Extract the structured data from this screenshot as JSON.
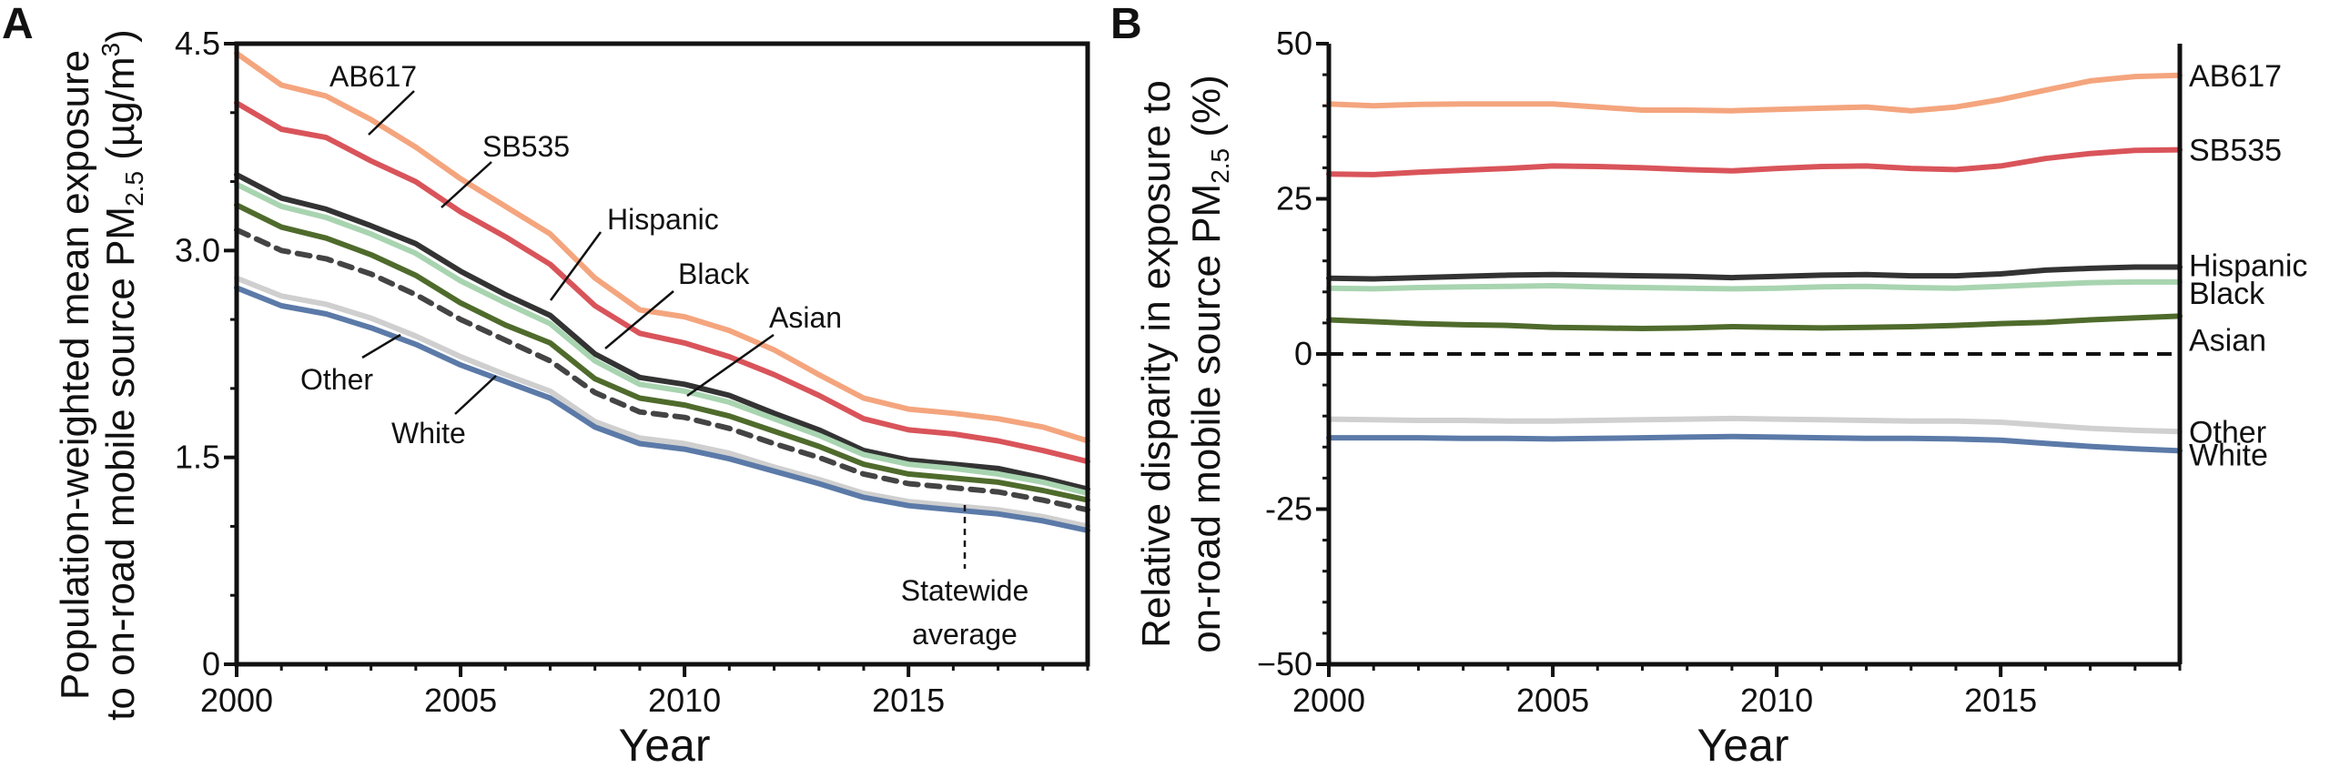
{
  "chart_data": [
    {
      "panel": "A",
      "type": "line",
      "ylabel_line1": "Population-weighted mean exposure",
      "ylabel_line2_prefix": "to on-road mobile source PM",
      "ylabel_sub": "2.5",
      "ylabel_unit_prefix": " (µg/m",
      "ylabel_unit_sup": "3",
      "ylabel_unit_suffix": ")",
      "xlabel": "Year",
      "xlim": [
        2000,
        2019
      ],
      "ylim": [
        0,
        4.5
      ],
      "xticks": [
        2000,
        2005,
        2010,
        2015
      ],
      "yticks": [
        {
          "value": 0,
          "label": "0"
        },
        {
          "value": 1.5,
          "label": "1.5"
        },
        {
          "value": 3.0,
          "label": "3.0"
        },
        {
          "value": 4.5,
          "label": "4.5"
        }
      ],
      "x": [
        2000,
        2001,
        2002,
        2003,
        2004,
        2005,
        2006,
        2007,
        2008,
        2009,
        2010,
        2011,
        2012,
        2013,
        2014,
        2015,
        2016,
        2017,
        2018,
        2019
      ],
      "series": [
        {
          "name": "AB617",
          "color": "#f4a57e",
          "values": [
            4.43,
            4.2,
            4.12,
            3.95,
            3.75,
            3.52,
            3.32,
            3.12,
            2.8,
            2.57,
            2.52,
            2.42,
            2.28,
            2.1,
            1.93,
            1.85,
            1.82,
            1.78,
            1.72,
            1.62
          ]
        },
        {
          "name": "SB535",
          "color": "#d9545a",
          "values": [
            4.07,
            3.88,
            3.82,
            3.65,
            3.5,
            3.28,
            3.1,
            2.9,
            2.6,
            2.4,
            2.33,
            2.23,
            2.1,
            1.95,
            1.78,
            1.7,
            1.67,
            1.62,
            1.55,
            1.47
          ]
        },
        {
          "name": "Hispanic",
          "color": "#333333",
          "values": [
            3.55,
            3.38,
            3.3,
            3.18,
            3.05,
            2.85,
            2.68,
            2.53,
            2.25,
            2.08,
            2.03,
            1.95,
            1.82,
            1.7,
            1.55,
            1.48,
            1.45,
            1.42,
            1.35,
            1.27
          ]
        },
        {
          "name": "Black",
          "color": "#a8d4b0",
          "values": [
            3.48,
            3.32,
            3.24,
            3.12,
            2.98,
            2.78,
            2.62,
            2.47,
            2.2,
            2.03,
            1.98,
            1.9,
            1.78,
            1.66,
            1.52,
            1.45,
            1.42,
            1.38,
            1.32,
            1.24
          ]
        },
        {
          "name": "Asian",
          "color": "#4f6b2c",
          "values": [
            3.33,
            3.17,
            3.09,
            2.97,
            2.82,
            2.62,
            2.46,
            2.33,
            2.07,
            1.93,
            1.88,
            1.8,
            1.69,
            1.58,
            1.45,
            1.38,
            1.35,
            1.32,
            1.26,
            1.19
          ]
        },
        {
          "name": "Statewide average",
          "color": "#444444",
          "dashed": true,
          "values": [
            3.15,
            3.0,
            2.94,
            2.83,
            2.68,
            2.5,
            2.35,
            2.2,
            1.97,
            1.83,
            1.79,
            1.71,
            1.6,
            1.5,
            1.38,
            1.31,
            1.28,
            1.25,
            1.19,
            1.12
          ]
        },
        {
          "name": "Other",
          "color": "#cfcfcf",
          "values": [
            2.8,
            2.67,
            2.61,
            2.51,
            2.38,
            2.23,
            2.1,
            1.98,
            1.76,
            1.64,
            1.6,
            1.53,
            1.43,
            1.34,
            1.24,
            1.18,
            1.15,
            1.12,
            1.07,
            1.0
          ]
        },
        {
          "name": "White",
          "color": "#5b7aa8",
          "values": [
            2.73,
            2.6,
            2.54,
            2.44,
            2.32,
            2.17,
            2.05,
            1.93,
            1.72,
            1.6,
            1.56,
            1.49,
            1.4,
            1.31,
            1.21,
            1.15,
            1.12,
            1.09,
            1.04,
            0.97
          ]
        }
      ],
      "annotations": {
        "ab617": "AB617",
        "sb535": "SB535",
        "hispanic": "Hispanic",
        "black": "Black",
        "asian": "Asian",
        "other": "Other",
        "white": "White",
        "statewide_line1": "Statewide",
        "statewide_line2": "average"
      }
    },
    {
      "panel": "B",
      "type": "line",
      "ylabel_line1": "Relative disparity in  exposure to",
      "ylabel_line2_prefix": "on-road mobile source PM",
      "ylabel_sub": "2.5",
      "ylabel_unit_suffix": " (%)",
      "xlabel": "Year",
      "xlim": [
        2000,
        2019
      ],
      "ylim": [
        -50,
        50
      ],
      "xticks": [
        2000,
        2005,
        2010,
        2015
      ],
      "yticks": [
        {
          "value": -50,
          "label": "−50"
        },
        {
          "value": -25,
          "label": "-25"
        },
        {
          "value": 0,
          "label": "0"
        },
        {
          "value": 25,
          "label": "25"
        },
        {
          "value": 50,
          "label": "50"
        }
      ],
      "zero_line": true,
      "x": [
        2000,
        2001,
        2002,
        2003,
        2004,
        2005,
        2006,
        2007,
        2008,
        2009,
        2010,
        2011,
        2012,
        2013,
        2014,
        2015,
        2016,
        2017,
        2018,
        2019
      ],
      "series": [
        {
          "name": "AB617",
          "color": "#f4a57e",
          "values": [
            40.3,
            40.0,
            40.2,
            40.3,
            40.3,
            40.3,
            39.8,
            39.3,
            39.3,
            39.2,
            39.4,
            39.6,
            39.8,
            39.2,
            39.8,
            41.0,
            42.5,
            44.0,
            44.7,
            44.9
          ]
        },
        {
          "name": "SB535",
          "color": "#d9545a",
          "values": [
            29.0,
            28.9,
            29.3,
            29.6,
            29.9,
            30.3,
            30.2,
            30.0,
            29.7,
            29.5,
            29.9,
            30.2,
            30.3,
            29.9,
            29.7,
            30.3,
            31.5,
            32.3,
            32.8,
            32.9
          ]
        },
        {
          "name": "Hispanic",
          "color": "#333333",
          "values": [
            12.2,
            12.1,
            12.3,
            12.5,
            12.7,
            12.8,
            12.7,
            12.6,
            12.5,
            12.3,
            12.5,
            12.7,
            12.8,
            12.6,
            12.6,
            12.9,
            13.5,
            13.8,
            14.0,
            14.0
          ]
        },
        {
          "name": "Black",
          "color": "#a8d4b0",
          "values": [
            10.6,
            10.5,
            10.7,
            10.8,
            10.9,
            11.0,
            10.8,
            10.7,
            10.6,
            10.5,
            10.6,
            10.8,
            10.9,
            10.7,
            10.6,
            10.9,
            11.2,
            11.5,
            11.6,
            11.6
          ]
        },
        {
          "name": "Asian",
          "color": "#4f6b2c",
          "values": [
            5.5,
            5.2,
            4.9,
            4.7,
            4.6,
            4.3,
            4.2,
            4.1,
            4.2,
            4.4,
            4.3,
            4.2,
            4.3,
            4.4,
            4.6,
            4.9,
            5.1,
            5.5,
            5.8,
            6.1
          ]
        },
        {
          "name": "Other",
          "color": "#d0d0d0",
          "values": [
            -10.5,
            -10.6,
            -10.7,
            -10.7,
            -10.8,
            -10.8,
            -10.7,
            -10.6,
            -10.5,
            -10.4,
            -10.5,
            -10.6,
            -10.7,
            -10.8,
            -10.8,
            -11.0,
            -11.5,
            -12.0,
            -12.3,
            -12.5
          ]
        },
        {
          "name": "White",
          "color": "#5b7aa8",
          "values": [
            -13.5,
            -13.5,
            -13.5,
            -13.6,
            -13.6,
            -13.7,
            -13.6,
            -13.5,
            -13.4,
            -13.3,
            -13.4,
            -13.5,
            -13.6,
            -13.6,
            -13.7,
            -13.9,
            -14.4,
            -14.9,
            -15.3,
            -15.6
          ]
        }
      ],
      "annotations": {
        "ab617": "AB617",
        "sb535": "SB535",
        "hispanic": "Hispanic",
        "black": "Black",
        "asian": "Asian",
        "other": "Other",
        "white": "White"
      }
    }
  ]
}
